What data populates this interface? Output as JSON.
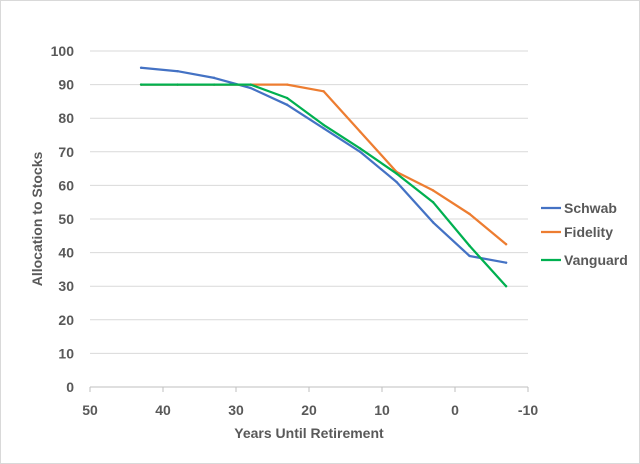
{
  "chart_data": {
    "type": "line",
    "xlabel": "Years Until Retirement",
    "ylabel": "Allocation to Stocks",
    "xlim": [
      50,
      -10
    ],
    "ylim": [
      0,
      100
    ],
    "x_ticks": [
      "50",
      "40",
      "30",
      "20",
      "10",
      "0",
      "-10"
    ],
    "y_ticks": [
      "0",
      "10",
      "20",
      "30",
      "40",
      "50",
      "60",
      "70",
      "80",
      "90",
      "100"
    ],
    "grid": "horizontal",
    "legend_position": "right",
    "series": [
      {
        "name": "Schwab",
        "color": "#4472c4",
        "x": [
          43,
          38,
          33,
          28,
          23,
          18,
          13,
          8,
          3,
          -2,
          -7
        ],
        "y": [
          95,
          94,
          92,
          89,
          84,
          77,
          70,
          61,
          49,
          39,
          37
        ]
      },
      {
        "name": "Fidelity",
        "color": "#ed7d31",
        "x": [
          43,
          38,
          33,
          28,
          23,
          18,
          13,
          8,
          3,
          -2,
          -7
        ],
        "y": [
          90,
          90,
          90,
          90,
          90,
          88,
          76,
          64,
          58.5,
          51.5,
          42.5
        ]
      },
      {
        "name": "Vanguard",
        "color": "#00b050",
        "x": [
          43,
          38,
          33,
          28,
          23,
          18,
          13,
          8,
          3,
          -2,
          -7
        ],
        "y": [
          90,
          90,
          90,
          90,
          86,
          78,
          71,
          63.5,
          55,
          42,
          30
        ]
      }
    ]
  }
}
